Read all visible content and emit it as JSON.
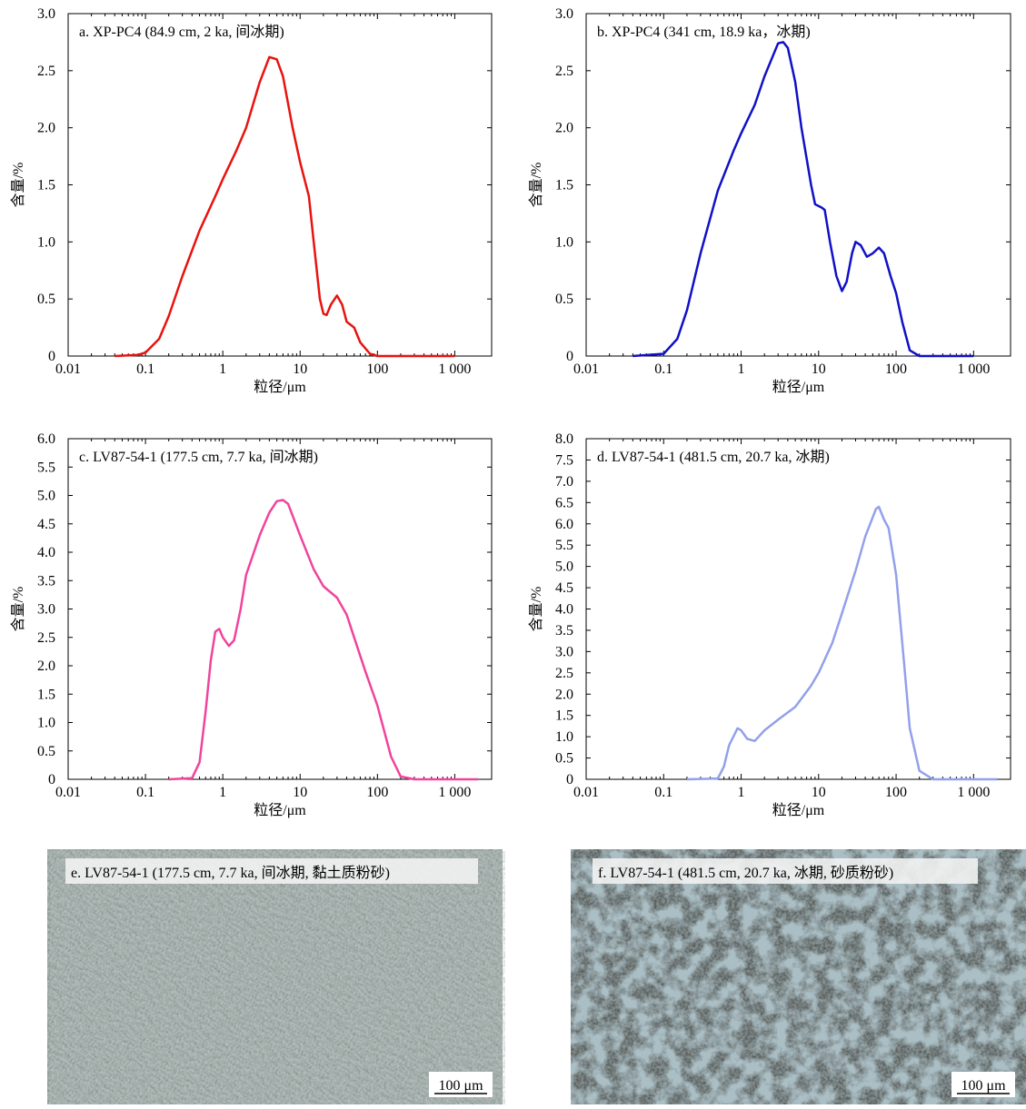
{
  "chart_data": [
    {
      "type": "line",
      "title": "a. XP-PC4 (84.9 cm, 2 ka, 间冰期)",
      "xlabel": "粒径/μm",
      "ylabel": "含量/%",
      "xscale": "log",
      "xlim": [
        0.01,
        3000
      ],
      "xticks": [
        0.01,
        0.1,
        1,
        10,
        100,
        {
          "value": 1000,
          "label": "1 000"
        }
      ],
      "ylim": [
        0,
        3
      ],
      "yticks": [
        0,
        0.5,
        {
          "value": 1,
          "label": "1.0"
        },
        1.5,
        {
          "value": 2,
          "label": "2.0"
        },
        2.5,
        {
          "value": 3,
          "label": "3.0"
        }
      ],
      "x": [
        0.04,
        0.08,
        0.1,
        0.15,
        0.2,
        0.3,
        0.5,
        0.8,
        1,
        1.5,
        2,
        3,
        4,
        5,
        6,
        8,
        10,
        13,
        15,
        18,
        20,
        22,
        25,
        30,
        35,
        40,
        50,
        60,
        80,
        100,
        1000
      ],
      "series": [
        {
          "color": "#e8130f",
          "values": [
            0,
            0.01,
            0.03,
            0.15,
            0.35,
            0.7,
            1.1,
            1.4,
            1.55,
            1.8,
            2.0,
            2.4,
            2.62,
            2.6,
            2.45,
            2.0,
            1.7,
            1.4,
            1.0,
            0.5,
            0.37,
            0.36,
            0.45,
            0.53,
            0.45,
            0.3,
            0.25,
            0.12,
            0.02,
            0,
            0
          ]
        }
      ]
    },
    {
      "type": "line",
      "title": "b. XP-PC4 (341 cm, 18.9 ka，冰期)",
      "xlabel": "粒径/μm",
      "ylabel": "含量/%",
      "xscale": "log",
      "xlim": [
        0.01,
        3000
      ],
      "xticks": [
        0.01,
        0.1,
        1,
        10,
        100,
        {
          "value": 1000,
          "label": "1 000"
        }
      ],
      "ylim": [
        0,
        3
      ],
      "yticks": [
        0,
        0.5,
        {
          "value": 1,
          "label": "1.0"
        },
        1.5,
        {
          "value": 2,
          "label": "2.0"
        },
        2.5,
        {
          "value": 3,
          "label": "3.0"
        }
      ],
      "x": [
        0.04,
        0.1,
        0.15,
        0.2,
        0.3,
        0.5,
        0.8,
        1,
        1.5,
        2,
        3,
        3.5,
        4,
        5,
        6,
        8,
        9,
        11,
        12,
        14,
        17,
        20,
        23,
        27,
        30,
        35,
        42,
        50,
        60,
        70,
        85,
        100,
        120,
        150,
        200,
        1000
      ],
      "series": [
        {
          "color": "#1010c8",
          "values": [
            0,
            0.02,
            0.15,
            0.4,
            0.9,
            1.45,
            1.8,
            1.95,
            2.2,
            2.45,
            2.74,
            2.75,
            2.7,
            2.4,
            2.0,
            1.5,
            1.33,
            1.3,
            1.28,
            1.0,
            0.7,
            0.57,
            0.65,
            0.9,
            1.0,
            0.97,
            0.87,
            0.9,
            0.95,
            0.9,
            0.7,
            0.55,
            0.3,
            0.05,
            0,
            0
          ]
        }
      ]
    },
    {
      "type": "line",
      "title": "c. LV87-54-1 (177.5 cm, 7.7 ka, 间冰期)",
      "xlabel": "粒径/μm",
      "ylabel": "含量/%",
      "xscale": "log",
      "xlim": [
        0.01,
        3000
      ],
      "xticks": [
        0.01,
        0.1,
        1,
        10,
        100,
        {
          "value": 1000,
          "label": "1 000"
        }
      ],
      "ylim": [
        0,
        6
      ],
      "yticks": [
        0,
        0.5,
        {
          "value": 1,
          "label": "1.0"
        },
        1.5,
        {
          "value": 2,
          "label": "2.0"
        },
        2.5,
        {
          "value": 3,
          "label": "3.0"
        },
        3.5,
        {
          "value": 4,
          "label": "4.0"
        },
        4.5,
        {
          "value": 5,
          "label": "5.0"
        },
        5.5,
        {
          "value": 6,
          "label": "6.0"
        }
      ],
      "x": [
        0.2,
        0.4,
        0.5,
        0.6,
        0.7,
        0.8,
        0.9,
        1,
        1.2,
        1.4,
        1.7,
        2,
        3,
        4,
        5,
        6,
        7,
        10,
        15,
        20,
        30,
        40,
        50,
        70,
        100,
        150,
        200,
        300,
        2000
      ],
      "series": [
        {
          "color": "#f0449c",
          "values": [
            0,
            0.02,
            0.3,
            1.2,
            2.1,
            2.6,
            2.65,
            2.5,
            2.35,
            2.45,
            3.0,
            3.6,
            4.3,
            4.7,
            4.9,
            4.92,
            4.85,
            4.3,
            3.7,
            3.4,
            3.2,
            2.9,
            2.5,
            1.9,
            1.3,
            0.4,
            0.05,
            0,
            0
          ]
        }
      ]
    },
    {
      "type": "line",
      "title": "d. LV87-54-1 (481.5 cm, 20.7 ka, 冰期)",
      "xlabel": "粒径/μm",
      "ylabel": "含量/%",
      "xscale": "log",
      "xlim": [
        0.01,
        3000
      ],
      "xticks": [
        0.01,
        0.1,
        1,
        10,
        100,
        {
          "value": 1000,
          "label": "1 000"
        }
      ],
      "ylim": [
        0,
        8
      ],
      "yticks": [
        0,
        0.5,
        {
          "value": 1,
          "label": "1.0"
        },
        1.5,
        {
          "value": 2,
          "label": "2.0"
        },
        2.5,
        {
          "value": 3,
          "label": "3.0"
        },
        3.5,
        {
          "value": 4,
          "label": "4.0"
        },
        4.5,
        {
          "value": 5,
          "label": "5.0"
        },
        5.5,
        {
          "value": 6,
          "label": "6.0"
        },
        6.5,
        {
          "value": 7,
          "label": "7.0"
        },
        7.5,
        {
          "value": 8,
          "label": "8.0"
        }
      ],
      "x": [
        0.2,
        0.5,
        0.6,
        0.7,
        0.9,
        1,
        1.2,
        1.5,
        2,
        3,
        5,
        8,
        10,
        15,
        20,
        30,
        40,
        55,
        60,
        70,
        80,
        100,
        130,
        150,
        200,
        300,
        2000
      ],
      "series": [
        {
          "color": "#93a0ea",
          "values": [
            0,
            0.02,
            0.3,
            0.8,
            1.2,
            1.15,
            0.95,
            0.9,
            1.15,
            1.4,
            1.7,
            2.2,
            2.5,
            3.2,
            3.9,
            4.9,
            5.7,
            6.35,
            6.4,
            6.1,
            5.9,
            4.8,
            2.5,
            1.2,
            0.2,
            0,
            0
          ]
        }
      ]
    }
  ],
  "images": [
    {
      "caption": "e. LV87-54-1 (177.5 cm, 7.7 ka, 间冰期, 黏土质粉砂)",
      "scale_bar": "100 μm"
    },
    {
      "caption": "f. LV87-54-1 (481.5 cm, 20.7 ka, 冰期, 砂质粉砂)",
      "scale_bar": "100 μm"
    }
  ]
}
